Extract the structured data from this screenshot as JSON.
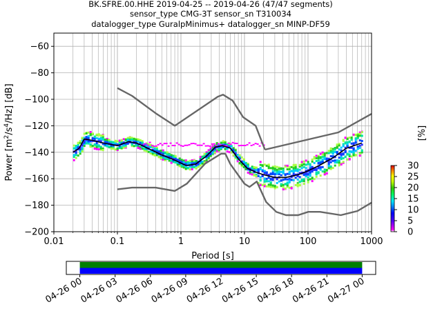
{
  "title_lines": [
    "BK.SFRE.00.HHE   2019-04-25 -- 2019-04-26  (47/47 segments)",
    "sensor_type CMG-3T sensor_sn T310034",
    "datalogger_type GuralpMinimus+ datalogger_sn MINP-DF59"
  ],
  "colorbar": {
    "label": "[%]",
    "ticks": [
      "0",
      "5",
      "10",
      "15",
      "20",
      "25",
      "30"
    ],
    "max": 30
  },
  "chart_data": [
    {
      "type": "heatmap",
      "xlabel": "Period [s]",
      "ylabel_main": "Power [m",
      "ylabel_sup1": "2",
      "ylabel_mid": "/s",
      "ylabel_sup2": "4",
      "ylabel_tail": "/Hz] [dB]",
      "x_scale": "log",
      "xlim": [
        0.01,
        1000
      ],
      "ylim": [
        -200,
        -50
      ],
      "grid": true,
      "x_tick_labels": [
        "0.01",
        "0.1",
        "1",
        "10",
        "100",
        "1000"
      ],
      "y_tick_labels": [
        "−200",
        "−180",
        "−160",
        "−140",
        "−120",
        "−100",
        "−80",
        "−60"
      ],
      "y_ticks": [
        -200,
        -180,
        -160,
        -140,
        -120,
        -100,
        -80,
        -60
      ],
      "series": [
        {
          "role": "noise-model-upper",
          "color": "#666666",
          "x": [
            0.1,
            0.17,
            0.4,
            0.8,
            3.8,
            4.6,
            6.5,
            9.5,
            15,
            21
          ],
          "y": [
            -91.5,
            -97.4,
            -110.5,
            -120,
            -98,
            -96.5,
            -101,
            -113.5,
            -120,
            -138
          ]
        },
        {
          "role": "noise-model-upper-long",
          "color": "#666666",
          "x": [
            21,
            300,
            1000
          ],
          "y": [
            -138,
            -125,
            -111
          ]
        },
        {
          "role": "noise-model-lower",
          "color": "#666666",
          "x": [
            0.1,
            0.17,
            0.4,
            0.8,
            1.24,
            2.4,
            4.3,
            5,
            6,
            10,
            12,
            15.6,
            21.9,
            31.6,
            45,
            70,
            101,
            154,
            328,
            600,
            1000
          ],
          "y": [
            -168,
            -166.7,
            -166.7,
            -169.2,
            -163.7,
            -148.6,
            -141.1,
            -141.1,
            -149,
            -163.8,
            -166.2,
            -162.1,
            -177.5,
            -185,
            -187.5,
            -187.5,
            -185,
            -185,
            -187.5,
            -184.4,
            -178
          ]
        },
        {
          "role": "mode",
          "color": "#000000",
          "x": [
            0.02,
            0.025,
            0.03,
            0.04,
            0.06,
            0.1,
            0.15,
            0.2,
            0.3,
            0.5,
            0.8,
            1.2,
            1.7,
            2.5,
            3.5,
            4.5,
            6,
            8,
            11,
            15,
            20,
            30,
            45,
            70,
            100,
            150,
            250,
            400,
            700
          ],
          "y": [
            -140,
            -137,
            -130,
            -131,
            -133,
            -135,
            -132,
            -133,
            -137,
            -142,
            -146,
            -150,
            -149,
            -143,
            -136,
            -135,
            -137,
            -145,
            -152,
            -155,
            -157,
            -159,
            -159,
            -157,
            -154,
            -150,
            -144,
            -137,
            -133
          ]
        }
      ],
      "density": {
        "scatter_dB": [
          3,
          4,
          5,
          6,
          7,
          9,
          12
        ],
        "colors": [
          "#2b2bff",
          "#0044ff",
          "#00c8ff",
          "#00e6a0",
          "#22cc22",
          "#aaff44",
          "#ff00ff"
        ]
      }
    },
    {
      "type": "bar",
      "role": "data-availability-timeline",
      "x_tick_labels": [
        "04-26 00",
        "04-26 03",
        "04-26 06",
        "04-26 09",
        "04-26 12",
        "04-26 15",
        "04-26 18",
        "04-26 21",
        "04-27 00"
      ],
      "bands": [
        {
          "color": "#007f00",
          "start_hour": 0,
          "end_hour": 24
        },
        {
          "color": "#0000ff",
          "start_hour": 0,
          "end_hour": 24
        }
      ],
      "range_hours": [
        -1.15,
        25.15
      ]
    }
  ]
}
